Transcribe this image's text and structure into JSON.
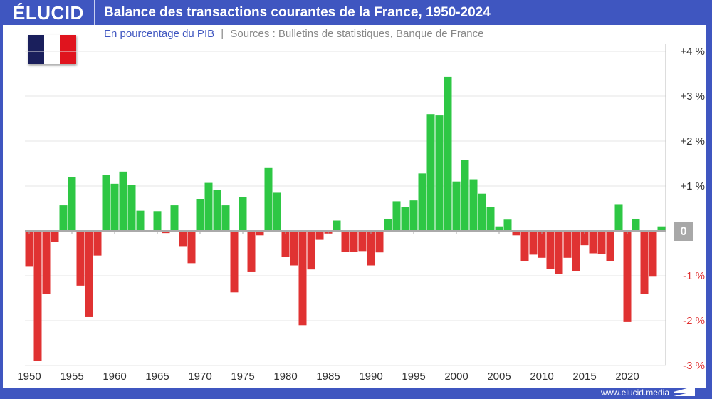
{
  "header": {
    "brand": "ÉLUCID",
    "title": "Balance des transactions courantes de la France, 1950-2024"
  },
  "subtitle": {
    "unit": "En pourcentage du PIB",
    "separator": "|",
    "sources": "Sources : Bulletins de statistiques, Banque de France"
  },
  "footer": {
    "url": "www.elucid.media"
  },
  "flag": {
    "colors": [
      "#1a1f5c",
      "#ffffff",
      "#e0141e"
    ]
  },
  "colors": {
    "positive": "#2ec744",
    "negative": "#e03232",
    "brand": "#3f56c0",
    "zero_box": "#a8a8a8"
  },
  "chart_data": {
    "type": "bar",
    "title": "Balance des transactions courantes de la France, 1950-2024",
    "ylabel": "En pourcentage du PIB",
    "ylim": [
      -3,
      4
    ],
    "grid": true,
    "y_ticks": [
      {
        "value": 4,
        "label": "+4 %"
      },
      {
        "value": 3,
        "label": "+3 %"
      },
      {
        "value": 2,
        "label": "+2 %"
      },
      {
        "value": 1,
        "label": "+1 %"
      },
      {
        "value": 0,
        "label": "0"
      },
      {
        "value": -1,
        "label": "-1 %"
      },
      {
        "value": -2,
        "label": "-2 %"
      },
      {
        "value": -3,
        "label": "-3 %"
      }
    ],
    "x_ticks": [
      "1950",
      "1955",
      "1960",
      "1965",
      "1970",
      "1975",
      "1980",
      "1985",
      "1990",
      "1995",
      "2000",
      "2005",
      "2010",
      "2015",
      "2020"
    ],
    "start_year": 1950,
    "categories": [
      1950,
      1951,
      1952,
      1953,
      1954,
      1955,
      1956,
      1957,
      1958,
      1959,
      1960,
      1961,
      1962,
      1963,
      1964,
      1965,
      1966,
      1967,
      1968,
      1969,
      1970,
      1971,
      1972,
      1973,
      1974,
      1975,
      1976,
      1977,
      1978,
      1979,
      1980,
      1981,
      1982,
      1983,
      1984,
      1985,
      1986,
      1987,
      1988,
      1989,
      1990,
      1991,
      1992,
      1993,
      1994,
      1995,
      1996,
      1997,
      1998,
      1999,
      2000,
      2001,
      2002,
      2003,
      2004,
      2005,
      2006,
      2007,
      2008,
      2009,
      2010,
      2011,
      2012,
      2013,
      2014,
      2015,
      2016,
      2017,
      2018,
      2019,
      2020,
      2021,
      2022,
      2023,
      2024
    ],
    "values": [
      -0.8,
      -2.9,
      -1.4,
      -0.25,
      0.57,
      1.2,
      -1.22,
      -1.92,
      -0.55,
      1.25,
      1.05,
      1.32,
      1.03,
      0.45,
      -0.02,
      0.44,
      -0.05,
      0.57,
      -0.34,
      -0.72,
      0.7,
      1.07,
      0.92,
      0.57,
      -1.37,
      0.75,
      -0.92,
      -0.1,
      1.4,
      0.85,
      -0.58,
      -0.77,
      -2.1,
      -0.86,
      -0.2,
      -0.06,
      0.23,
      -0.47,
      -0.47,
      -0.45,
      -0.77,
      -0.48,
      0.27,
      0.66,
      0.53,
      0.68,
      1.28,
      2.6,
      2.57,
      3.43,
      1.1,
      1.58,
      1.15,
      0.83,
      0.53,
      0.1,
      0.25,
      -0.1,
      -0.68,
      -0.53,
      -0.6,
      -0.85,
      -0.96,
      -0.6,
      -0.9,
      -0.32,
      -0.5,
      -0.52,
      -0.68,
      0.58,
      -2.03,
      0.27,
      -1.4,
      -1.02,
      0.1
    ]
  }
}
